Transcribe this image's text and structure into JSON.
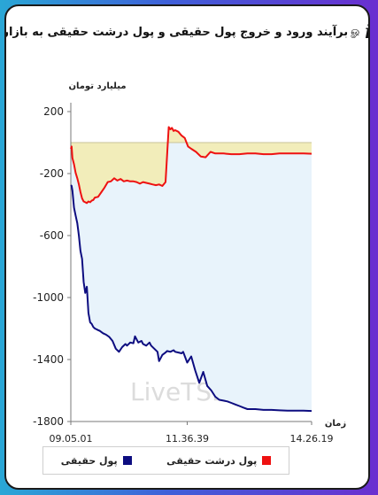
{
  "header": {
    "title": "برآیند ورود و خروج پول حقیقی و پول درشت حقیقی به بازار",
    "info_icon": "info-icon",
    "share_icon": "swirl-icon"
  },
  "chart_data": {
    "type": "line",
    "ylabel": "میلیارد تومان",
    "xlabel": "زمان",
    "ylim": [
      -1800,
      200
    ],
    "yticks": [
      200,
      -200,
      -600,
      -1000,
      -1400,
      -1800
    ],
    "ytick_labels": [
      "200",
      "-200",
      "-600",
      "-1000",
      "-1400",
      "-1800"
    ],
    "xticks": [
      "09.05.01",
      "11.36.39",
      "14.26.19"
    ],
    "x_range": [
      0,
      300
    ],
    "xtick_positions": [
      0,
      145,
      300
    ],
    "watermark": "LiveTSE.ir",
    "series": [
      {
        "name": "پول حقیقی",
        "color": "#0d0d80",
        "fill": "#e8f3fb",
        "x": [
          0,
          1,
          2,
          4,
          6,
          8,
          10,
          12,
          14,
          16,
          18,
          20,
          22,
          24,
          26,
          28,
          30,
          32,
          34,
          36,
          40,
          44,
          48,
          52,
          56,
          60,
          64,
          68,
          70,
          74,
          78,
          80,
          84,
          88,
          90,
          94,
          98,
          100,
          104,
          108,
          110,
          114,
          118,
          120,
          124,
          128,
          130,
          134,
          138,
          140,
          145,
          150,
          155,
          160,
          165,
          170,
          175,
          180,
          185,
          190,
          195,
          200,
          205,
          210,
          215,
          220,
          230,
          240,
          250,
          260,
          270,
          280,
          290,
          300
        ],
        "y": [
          -275,
          -280,
          -310,
          -420,
          -470,
          -520,
          -600,
          -700,
          -750,
          -900,
          -970,
          -930,
          -1100,
          -1160,
          -1170,
          -1190,
          -1200,
          -1205,
          -1210,
          -1215,
          -1230,
          -1240,
          -1255,
          -1280,
          -1330,
          -1350,
          -1320,
          -1300,
          -1310,
          -1290,
          -1295,
          -1250,
          -1290,
          -1280,
          -1300,
          -1310,
          -1290,
          -1310,
          -1330,
          -1350,
          -1410,
          -1370,
          -1355,
          -1345,
          -1350,
          -1340,
          -1350,
          -1355,
          -1360,
          -1350,
          -1420,
          -1380,
          -1470,
          -1550,
          -1480,
          -1570,
          -1600,
          -1640,
          -1660,
          -1665,
          -1670,
          -1680,
          -1690,
          -1700,
          -1710,
          -1720,
          -1720,
          -1725,
          -1725,
          -1728,
          -1730,
          -1730,
          -1730,
          -1732
        ]
      },
      {
        "name": "پول درشت حقیقی",
        "color": "#ee1111",
        "fill": "#f2ecb6",
        "x": [
          0,
          1,
          2,
          4,
          6,
          8,
          10,
          12,
          14,
          16,
          18,
          20,
          22,
          24,
          26,
          28,
          30,
          34,
          38,
          42,
          46,
          50,
          54,
          58,
          62,
          66,
          70,
          74,
          78,
          82,
          86,
          90,
          94,
          98,
          102,
          106,
          110,
          114,
          118,
          122,
          124,
          126,
          128,
          130,
          134,
          138,
          142,
          146,
          150,
          156,
          162,
          168,
          174,
          180,
          190,
          200,
          210,
          220,
          230,
          240,
          250,
          260,
          270,
          280,
          290,
          300
        ],
        "y": [
          -40,
          -25,
          -100,
          -140,
          -195,
          -230,
          -270,
          -320,
          -360,
          -380,
          -385,
          -390,
          -380,
          -385,
          -375,
          -370,
          -355,
          -350,
          -320,
          -290,
          -255,
          -250,
          -230,
          -245,
          -235,
          -250,
          -245,
          -250,
          -250,
          -255,
          -265,
          -255,
          -260,
          -265,
          -270,
          -275,
          -270,
          -280,
          -255,
          100,
          85,
          95,
          75,
          80,
          70,
          45,
          30,
          -25,
          -40,
          -60,
          -90,
          -95,
          -60,
          -70,
          -70,
          -75,
          -75,
          -70,
          -70,
          -75,
          -75,
          -70,
          -70,
          -70,
          -70,
          -72
        ]
      }
    ],
    "zero_baseline": 0
  },
  "legend": {
    "items": [
      {
        "label": "پول درشت حقیقی",
        "color": "#ee1111"
      },
      {
        "label": "پول حقیقی",
        "color": "#0d0d80"
      }
    ]
  }
}
